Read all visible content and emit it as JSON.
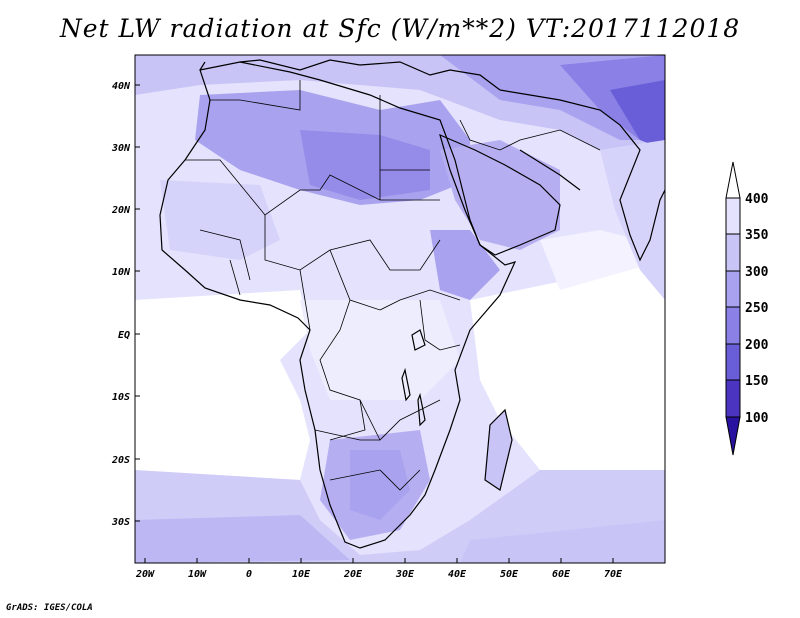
{
  "title": "Net LW radiation at Sfc (W/m**2) VT:2017112018",
  "credit": "GrADS: IGES/COLA",
  "lat_labels": [
    "40N",
    "30N",
    "20N",
    "10N",
    "EQ",
    "10S",
    "20S",
    "30S"
  ],
  "lon_labels": [
    "20W",
    "10W",
    "0",
    "10E",
    "20E",
    "30E",
    "40E",
    "50E",
    "60E",
    "70E"
  ],
  "colorbar": {
    "levels": [
      "400",
      "350",
      "300",
      "250",
      "200",
      "150",
      "100"
    ],
    "colors": [
      "#ffffff",
      "#e4e2fc",
      "#c8c4f6",
      "#a9a2ef",
      "#8a80e6",
      "#6a5ed8",
      "#4a34c0",
      "#2a12a0"
    ]
  }
}
